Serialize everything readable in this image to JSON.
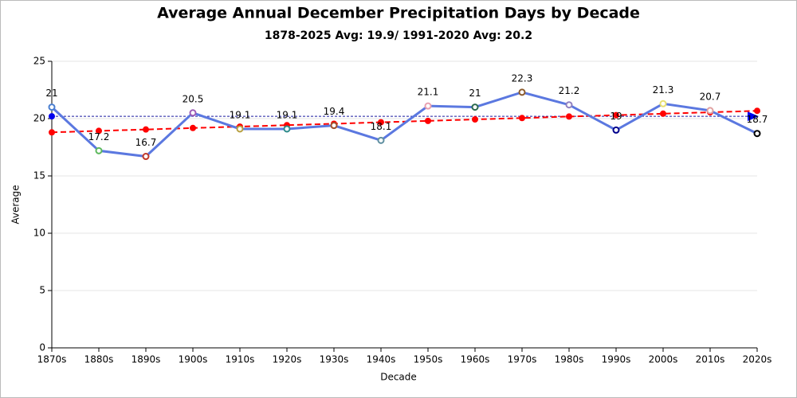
{
  "chart_data": {
    "type": "line",
    "title": "Average Annual December Precipitation Days by Decade",
    "subtitle": "1878-2025 Avg: 19.9/ 1991-2020 Avg: 20.2",
    "x_label": "Decade",
    "y_label": "Average",
    "categories": [
      "1870s",
      "1880s",
      "1890s",
      "1900s",
      "1910s",
      "1920s",
      "1930s",
      "1940s",
      "1950s",
      "1960s",
      "1970s",
      "1980s",
      "1990s",
      "2000s",
      "2010s",
      "2020s"
    ],
    "values": [
      21,
      17.2,
      16.7,
      20.5,
      19.1,
      19.1,
      19.4,
      18.1,
      21.1,
      21,
      22.3,
      21.2,
      19,
      21.3,
      20.7,
      18.7
    ],
    "color": "#5b78e0",
    "marker_colors": [
      "#4a7fd0",
      "#5cb85c",
      "#c0392b",
      "#9b59b6",
      "#b8a040",
      "#2e8b8b",
      "#a0522d",
      "#5f8fa0",
      "#e8a0b0",
      "#2e6b4f",
      "#8b5a2b",
      "#9080c0",
      "#00008b",
      "#e8e070",
      "#e0a0a0",
      "#000000"
    ],
    "trend": {
      "values": [
        18.8,
        18.93,
        19.05,
        19.18,
        19.3,
        19.43,
        19.55,
        19.68,
        19.8,
        19.93,
        20.05,
        20.18,
        20.3,
        20.43,
        20.55,
        20.68
      ],
      "color": "#ff0000"
    },
    "reference": {
      "value": 20.2,
      "color": "#1a1aa0"
    },
    "ylim": [
      0,
      25
    ],
    "yticks": [
      0,
      5,
      10,
      15,
      20,
      25
    ],
    "grid": true
  }
}
